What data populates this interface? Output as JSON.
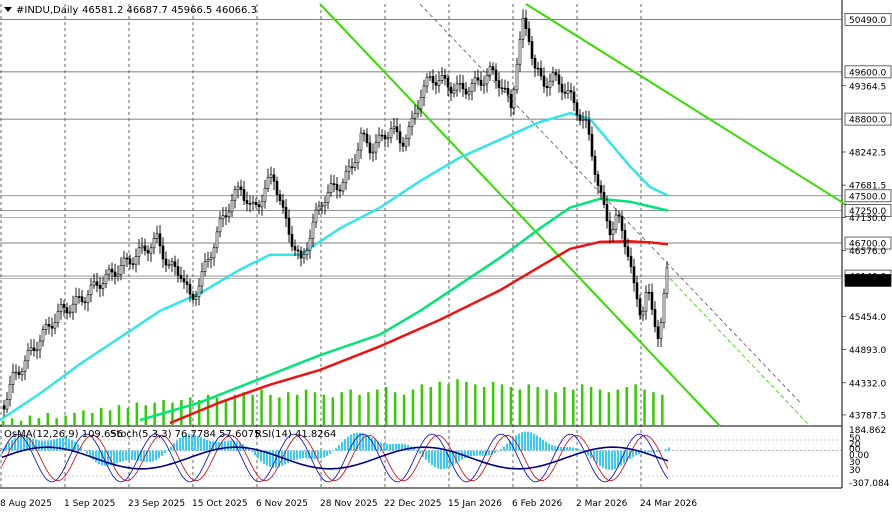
{
  "header": {
    "symbol_label": "#INDU,Daily",
    "ohlc": "46581.2 46687.7 45966.5 46066.3"
  },
  "osc_header": {
    "osma": "OsMA(12,26,9) 109.656",
    "stoch": "Stoch(5,3,3) 76.7784 57.6075",
    "rsi": "RSI(14) 41.8264"
  },
  "colors": {
    "candle": "#000000",
    "ma_short": "#33e6e6",
    "ma_mid": "#00e676",
    "ma_long": "#ee1111",
    "channel": "#33dd00",
    "volume": "#33cc00",
    "osma_hist": "#33ccff",
    "stoch_main": "#0000cc",
    "stoch_signal": "#cc0000",
    "rsi": "#000080"
  },
  "chart_data": {
    "type": "candlestick",
    "symbol": "#INDU",
    "timeframe": "Daily",
    "ylim": [
      43600,
      50750
    ],
    "y_tick_labels": [
      "50490.0",
      "49600.0",
      "49364.5",
      "48800.0",
      "48242.5",
      "47681.5",
      "47500.0",
      "47250.0",
      "47130.0",
      "46700.0",
      "46576.0",
      "46140.0",
      "46066.3",
      "45454.0",
      "44893.0",
      "44332.0",
      "43787.5"
    ],
    "boxed_levels": [
      "50490.0",
      "49600.0",
      "48800.0",
      "47500.0",
      "47250.0",
      "46700.0",
      "46140.0"
    ],
    "plain_levels": [
      "49364.5",
      "48242.5",
      "47681.5",
      "47130.0",
      "46576.0",
      "45454.0",
      "44893.0",
      "44332.0",
      "43787.5"
    ],
    "current_price_label": "46066.3",
    "x_tick_labels": [
      "8 Aug 2025",
      "1 Sep 2025",
      "23 Sep 2025",
      "15 Oct 2025",
      "6 Nov 2025",
      "28 Nov 2025",
      "22 Dec 2025",
      "15 Jan 2026",
      "6 Feb 2026",
      "2 Mar 2026",
      "24 Mar 2026"
    ],
    "close_path": [
      [
        0,
        43850
      ],
      [
        12,
        44400
      ],
      [
        24,
        44700
      ],
      [
        36,
        45000
      ],
      [
        48,
        45300
      ],
      [
        60,
        45550
      ],
      [
        72,
        45650
      ],
      [
        84,
        45800
      ],
      [
        96,
        46000
      ],
      [
        108,
        46150
      ],
      [
        120,
        46300
      ],
      [
        132,
        46450
      ],
      [
        144,
        46600
      ],
      [
        156,
        46750
      ],
      [
        168,
        46300
      ],
      [
        180,
        46200
      ],
      [
        190,
        45700
      ],
      [
        200,
        46100
      ],
      [
        210,
        46550
      ],
      [
        220,
        47050
      ],
      [
        230,
        47400
      ],
      [
        240,
        47650
      ],
      [
        250,
        47250
      ],
      [
        262,
        47500
      ],
      [
        272,
        47900
      ],
      [
        282,
        47200
      ],
      [
        292,
        46700
      ],
      [
        300,
        46350
      ],
      [
        310,
        46900
      ],
      [
        320,
        47400
      ],
      [
        330,
        47600
      ],
      [
        340,
        47700
      ],
      [
        350,
        47950
      ],
      [
        360,
        48500
      ],
      [
        370,
        48300
      ],
      [
        380,
        48450
      ],
      [
        390,
        48650
      ],
      [
        400,
        48400
      ],
      [
        410,
        48650
      ],
      [
        420,
        49250
      ],
      [
        430,
        49500
      ],
      [
        440,
        49450
      ],
      [
        450,
        49350
      ],
      [
        460,
        49300
      ],
      [
        470,
        49350
      ],
      [
        480,
        49450
      ],
      [
        490,
        49600
      ],
      [
        500,
        49400
      ],
      [
        510,
        49000
      ],
      [
        516,
        49800
      ],
      [
        522,
        50400
      ],
      [
        528,
        50200
      ],
      [
        534,
        49650
      ],
      [
        542,
        49400
      ],
      [
        552,
        49500
      ],
      [
        562,
        49350
      ],
      [
        570,
        49150
      ],
      [
        578,
        48900
      ],
      [
        586,
        48650
      ],
      [
        592,
        48150
      ],
      [
        598,
        47600
      ],
      [
        604,
        47200
      ],
      [
        610,
        46900
      ],
      [
        616,
        47150
      ],
      [
        622,
        46850
      ],
      [
        628,
        46500
      ],
      [
        634,
        45800
      ],
      [
        640,
        45500
      ],
      [
        646,
        45950
      ],
      [
        652,
        45400
      ],
      [
        658,
        45150
      ],
      [
        664,
        45900
      ],
      [
        668,
        46450
      ],
      [
        670,
        46066
      ]
    ],
    "ma_short_path": [
      [
        0,
        43700
      ],
      [
        40,
        44150
      ],
      [
        80,
        44650
      ],
      [
        120,
        45100
      ],
      [
        160,
        45550
      ],
      [
        200,
        45850
      ],
      [
        240,
        46250
      ],
      [
        270,
        46500
      ],
      [
        300,
        46500
      ],
      [
        340,
        46950
      ],
      [
        380,
        47300
      ],
      [
        420,
        47750
      ],
      [
        460,
        48150
      ],
      [
        500,
        48450
      ],
      [
        540,
        48750
      ],
      [
        570,
        48900
      ],
      [
        590,
        48800
      ],
      [
        610,
        48400
      ],
      [
        630,
        48000
      ],
      [
        650,
        47650
      ],
      [
        668,
        47500
      ]
    ],
    "ma_mid_path": [
      [
        140,
        43700
      ],
      [
        200,
        44000
      ],
      [
        260,
        44400
      ],
      [
        320,
        44800
      ],
      [
        380,
        45150
      ],
      [
        420,
        45550
      ],
      [
        460,
        46000
      ],
      [
        500,
        46450
      ],
      [
        540,
        46950
      ],
      [
        570,
        47300
      ],
      [
        600,
        47450
      ],
      [
        630,
        47400
      ],
      [
        650,
        47320
      ],
      [
        668,
        47250
      ]
    ],
    "ma_long_path": [
      [
        170,
        43650
      ],
      [
        220,
        44000
      ],
      [
        270,
        44300
      ],
      [
        320,
        44550
      ],
      [
        380,
        44950
      ],
      [
        440,
        45400
      ],
      [
        500,
        45900
      ],
      [
        540,
        46300
      ],
      [
        570,
        46600
      ],
      [
        600,
        46720
      ],
      [
        630,
        46730
      ],
      [
        650,
        46710
      ],
      [
        668,
        46680
      ]
    ],
    "channel_lines": [
      [
        [
          320,
          50750
        ],
        [
          720,
          43600
        ]
      ],
      [
        [
          526,
          50750
        ],
        [
          846,
          47350
        ]
      ],
      [
        [
          420,
          50750
        ],
        [
          800,
          44000
        ]
      ]
    ],
    "volume_values": [
      0.2,
      0.3,
      0.2,
      0.4,
      0.3,
      0.5,
      0.3,
      0.4,
      0.5,
      0.6,
      0.5,
      0.7,
      0.6,
      0.8,
      0.7,
      0.9,
      0.8,
      0.9,
      1.0,
      0.9,
      1.0,
      1.1,
      1.0,
      1.2,
      1.1,
      1.0,
      1.2,
      1.3,
      1.2,
      1.4,
      1.2,
      1.1,
      1.3,
      1.2,
      1.4,
      1.3,
      1.2,
      1.1,
      1.3,
      1.4,
      1.2,
      1.3,
      1.4,
      1.5,
      1.3,
      1.2,
      1.4,
      1.6,
      1.5,
      1.7,
      1.6,
      1.8,
      1.7,
      1.6,
      1.5,
      1.7,
      1.6,
      1.5,
      1.4,
      1.6,
      1.5,
      1.4,
      1.3,
      1.5,
      1.4,
      1.6,
      1.5,
      1.4,
      1.3,
      1.4,
      1.5,
      1.6,
      1.4,
      1.3,
      1.2
    ],
    "osc": {
      "ylim": [
        -307.084,
        184.862
      ],
      "right_labels": [
        "184.862",
        "50",
        "20",
        "00",
        "0.00",
        "30",
        "30",
        "-307.084"
      ]
    }
  }
}
